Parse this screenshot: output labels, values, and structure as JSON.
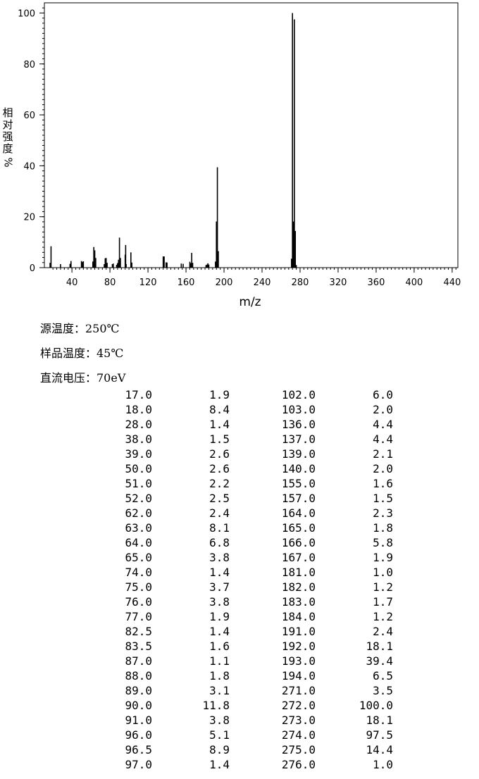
{
  "chart_data": {
    "type": "bar",
    "xlabel": "m/z",
    "ylabel_chars": [
      "相",
      "对",
      "强",
      "度"
    ],
    "ylabel_unit": "%",
    "xlim": [
      11,
      446
    ],
    "ylim": [
      0,
      104
    ],
    "xticks": [
      40,
      80,
      120,
      160,
      200,
      240,
      280,
      320,
      360,
      400,
      440
    ],
    "yticks": [
      0,
      20,
      40,
      60,
      80,
      100
    ],
    "peaks": [
      {
        "mz": 17.0,
        "intensity": 1.9
      },
      {
        "mz": 18.0,
        "intensity": 8.4
      },
      {
        "mz": 28.0,
        "intensity": 1.4
      },
      {
        "mz": 38.0,
        "intensity": 1.5
      },
      {
        "mz": 39.0,
        "intensity": 2.6
      },
      {
        "mz": 50.0,
        "intensity": 2.6
      },
      {
        "mz": 51.0,
        "intensity": 2.2
      },
      {
        "mz": 52.0,
        "intensity": 2.5
      },
      {
        "mz": 62.0,
        "intensity": 2.4
      },
      {
        "mz": 63.0,
        "intensity": 8.1
      },
      {
        "mz": 64.0,
        "intensity": 6.8
      },
      {
        "mz": 65.0,
        "intensity": 3.8
      },
      {
        "mz": 74.0,
        "intensity": 1.4
      },
      {
        "mz": 75.0,
        "intensity": 3.7
      },
      {
        "mz": 76.0,
        "intensity": 3.8
      },
      {
        "mz": 77.0,
        "intensity": 1.9
      },
      {
        "mz": 82.5,
        "intensity": 1.4
      },
      {
        "mz": 83.5,
        "intensity": 1.6
      },
      {
        "mz": 87.0,
        "intensity": 1.1
      },
      {
        "mz": 88.0,
        "intensity": 1.8
      },
      {
        "mz": 89.0,
        "intensity": 3.1
      },
      {
        "mz": 90.0,
        "intensity": 11.8
      },
      {
        "mz": 91.0,
        "intensity": 3.8
      },
      {
        "mz": 96.0,
        "intensity": 5.1
      },
      {
        "mz": 96.5,
        "intensity": 8.9
      },
      {
        "mz": 97.0,
        "intensity": 1.4
      },
      {
        "mz": 102.0,
        "intensity": 6.0
      },
      {
        "mz": 103.0,
        "intensity": 2.0
      },
      {
        "mz": 136.0,
        "intensity": 4.4
      },
      {
        "mz": 137.0,
        "intensity": 4.4
      },
      {
        "mz": 139.0,
        "intensity": 2.1
      },
      {
        "mz": 140.0,
        "intensity": 2.0
      },
      {
        "mz": 155.0,
        "intensity": 1.6
      },
      {
        "mz": 157.0,
        "intensity": 1.5
      },
      {
        "mz": 164.0,
        "intensity": 2.3
      },
      {
        "mz": 165.0,
        "intensity": 1.8
      },
      {
        "mz": 166.0,
        "intensity": 5.8
      },
      {
        "mz": 167.0,
        "intensity": 1.9
      },
      {
        "mz": 181.0,
        "intensity": 1.0
      },
      {
        "mz": 182.0,
        "intensity": 1.2
      },
      {
        "mz": 183.0,
        "intensity": 1.7
      },
      {
        "mz": 184.0,
        "intensity": 1.2
      },
      {
        "mz": 191.0,
        "intensity": 2.4
      },
      {
        "mz": 192.0,
        "intensity": 18.1
      },
      {
        "mz": 193.0,
        "intensity": 39.4
      },
      {
        "mz": 194.0,
        "intensity": 6.5
      },
      {
        "mz": 271.0,
        "intensity": 3.5
      },
      {
        "mz": 272.0,
        "intensity": 100.0
      },
      {
        "mz": 273.0,
        "intensity": 18.1
      },
      {
        "mz": 274.0,
        "intensity": 97.5
      },
      {
        "mz": 275.0,
        "intensity": 14.4
      },
      {
        "mz": 276.0,
        "intensity": 1.0
      }
    ]
  },
  "conditions": [
    "源温度：250℃",
    "样品温度：45℃",
    "直流电压：70eV"
  ],
  "peak_table": [
    [
      "17.0",
      "1.9",
      "102.0",
      "6.0"
    ],
    [
      "18.0",
      "8.4",
      "103.0",
      "2.0"
    ],
    [
      "28.0",
      "1.4",
      "136.0",
      "4.4"
    ],
    [
      "38.0",
      "1.5",
      "137.0",
      "4.4"
    ],
    [
      "39.0",
      "2.6",
      "139.0",
      "2.1"
    ],
    [
      "50.0",
      "2.6",
      "140.0",
      "2.0"
    ],
    [
      "51.0",
      "2.2",
      "155.0",
      "1.6"
    ],
    [
      "52.0",
      "2.5",
      "157.0",
      "1.5"
    ],
    [
      "62.0",
      "2.4",
      "164.0",
      "2.3"
    ],
    [
      "63.0",
      "8.1",
      "165.0",
      "1.8"
    ],
    [
      "64.0",
      "6.8",
      "166.0",
      "5.8"
    ],
    [
      "65.0",
      "3.8",
      "167.0",
      "1.9"
    ],
    [
      "74.0",
      "1.4",
      "181.0",
      "1.0"
    ],
    [
      "75.0",
      "3.7",
      "182.0",
      "1.2"
    ],
    [
      "76.0",
      "3.8",
      "183.0",
      "1.7"
    ],
    [
      "77.0",
      "1.9",
      "184.0",
      "1.2"
    ],
    [
      "82.5",
      "1.4",
      "191.0",
      "2.4"
    ],
    [
      "83.5",
      "1.6",
      "192.0",
      "18.1"
    ],
    [
      "87.0",
      "1.1",
      "193.0",
      "39.4"
    ],
    [
      "88.0",
      "1.8",
      "194.0",
      "6.5"
    ],
    [
      "89.0",
      "3.1",
      "271.0",
      "3.5"
    ],
    [
      "90.0",
      "11.8",
      "272.0",
      "100.0"
    ],
    [
      "91.0",
      "3.8",
      "273.0",
      "18.1"
    ],
    [
      "96.0",
      "5.1",
      "274.0",
      "97.5"
    ],
    [
      "96.5",
      "8.9",
      "275.0",
      "14.4"
    ],
    [
      "97.0",
      "1.4",
      "276.0",
      "1.0"
    ]
  ]
}
